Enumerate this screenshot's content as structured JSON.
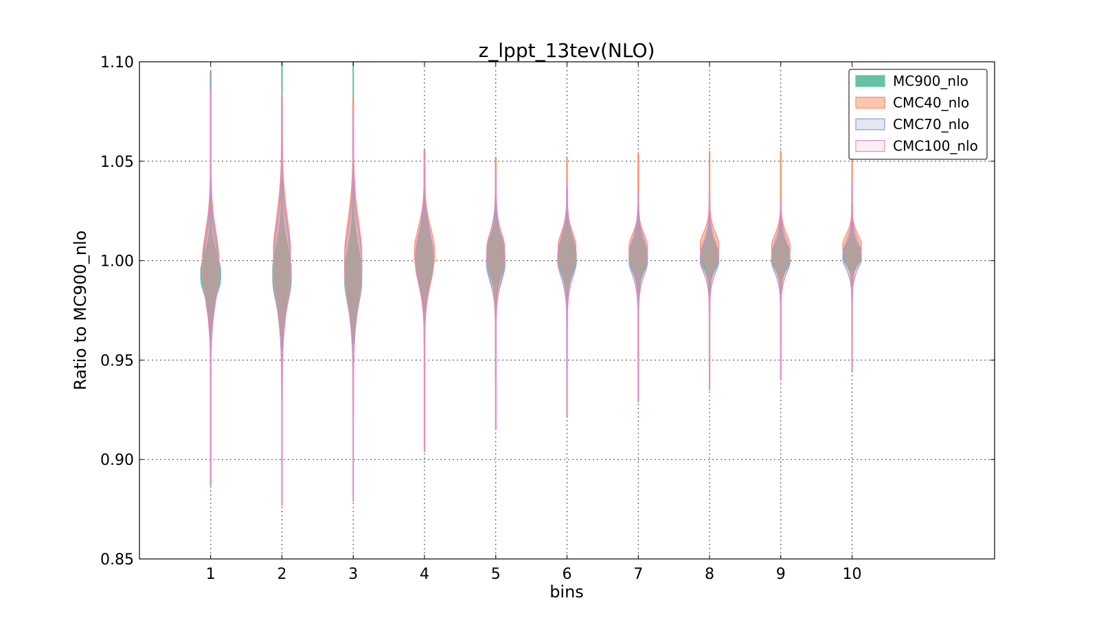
{
  "chart_data": {
    "type": "violin",
    "title": "z_lppt_13tev(NLO)",
    "xlabel": "bins",
    "ylabel": "Ratio to MC900_nlo",
    "xlim": [
      0,
      12
    ],
    "ylim": [
      0.85,
      1.1
    ],
    "x_ticks": [
      1,
      2,
      3,
      4,
      5,
      6,
      7,
      8,
      9,
      10
    ],
    "x_tick_labels": [
      "1",
      "2",
      "3",
      "4",
      "5",
      "6",
      "7",
      "8",
      "9",
      "10"
    ],
    "y_ticks": [
      0.85,
      0.9,
      0.95,
      1.0,
      1.05,
      1.1
    ],
    "y_tick_labels": [
      "0.85",
      "0.90",
      "0.95",
      "1.00",
      "1.05",
      "1.10"
    ],
    "grid": true,
    "legend_position": "top-right",
    "series": [
      {
        "name": "MC900_nlo",
        "color": "#66c2a5",
        "fill_alpha": 1.0,
        "violins": [
          {
            "bin": 1,
            "min": 0.887,
            "max": 1.095,
            "center": 0.993,
            "spread": 0.01,
            "maxwidth": 0.28
          },
          {
            "bin": 2,
            "min": 0.955,
            "max": 1.1,
            "center": 0.993,
            "spread": 0.014,
            "maxwidth": 0.26
          },
          {
            "bin": 3,
            "min": 0.958,
            "max": 1.1,
            "center": 0.992,
            "spread": 0.014,
            "maxwidth": 0.24
          },
          {
            "bin": 4,
            "min": 0.965,
            "max": 1.055,
            "center": 1.0,
            "spread": 0.011,
            "maxwidth": 0.24
          },
          {
            "bin": 5,
            "min": 0.972,
            "max": 1.052,
            "center": 1.002,
            "spread": 0.009,
            "maxwidth": 0.25
          },
          {
            "bin": 6,
            "min": 0.975,
            "max": 1.038,
            "center": 1.002,
            "spread": 0.008,
            "maxwidth": 0.25
          },
          {
            "bin": 7,
            "min": 0.978,
            "max": 1.032,
            "center": 1.002,
            "spread": 0.007,
            "maxwidth": 0.25
          },
          {
            "bin": 8,
            "min": 0.983,
            "max": 1.03,
            "center": 1.002,
            "spread": 0.006,
            "maxwidth": 0.25
          },
          {
            "bin": 9,
            "min": 0.984,
            "max": 1.025,
            "center": 1.002,
            "spread": 0.006,
            "maxwidth": 0.25
          },
          {
            "bin": 10,
            "min": 0.987,
            "max": 1.028,
            "center": 1.003,
            "spread": 0.005,
            "maxwidth": 0.25
          }
        ]
      },
      {
        "name": "CMC40_nlo",
        "color": "#fc8d62",
        "fill_alpha": 0.5,
        "violins": [
          {
            "bin": 1,
            "min": 0.96,
            "max": 1.085,
            "center": 0.998,
            "spread": 0.016,
            "maxwidth": 0.23
          },
          {
            "bin": 2,
            "min": 0.962,
            "max": 1.084,
            "center": 1.001,
            "spread": 0.02,
            "maxwidth": 0.24
          },
          {
            "bin": 3,
            "min": 0.962,
            "max": 1.082,
            "center": 1.0,
            "spread": 0.019,
            "maxwidth": 0.24
          },
          {
            "bin": 4,
            "min": 0.97,
            "max": 1.056,
            "center": 1.004,
            "spread": 0.012,
            "maxwidth": 0.28
          },
          {
            "bin": 5,
            "min": 0.975,
            "max": 1.051,
            "center": 1.005,
            "spread": 0.009,
            "maxwidth": 0.25
          },
          {
            "bin": 6,
            "min": 0.978,
            "max": 1.052,
            "center": 1.006,
            "spread": 0.008,
            "maxwidth": 0.25
          },
          {
            "bin": 7,
            "min": 0.982,
            "max": 1.054,
            "center": 1.006,
            "spread": 0.007,
            "maxwidth": 0.26
          },
          {
            "bin": 8,
            "min": 0.986,
            "max": 1.055,
            "center": 1.007,
            "spread": 0.007,
            "maxwidth": 0.26
          },
          {
            "bin": 9,
            "min": 0.988,
            "max": 1.055,
            "center": 1.006,
            "spread": 0.007,
            "maxwidth": 0.26
          },
          {
            "bin": 10,
            "min": 0.99,
            "max": 1.055,
            "center": 1.007,
            "spread": 0.006,
            "maxwidth": 0.26
          }
        ]
      },
      {
        "name": "CMC70_nlo",
        "color": "#8da0cb",
        "fill_alpha": 0.25,
        "violins": [
          {
            "bin": 1,
            "min": 0.95,
            "max": 1.095,
            "center": 0.995,
            "spread": 0.014,
            "maxwidth": 0.22
          },
          {
            "bin": 2,
            "min": 0.93,
            "max": 1.082,
            "center": 0.997,
            "spread": 0.018,
            "maxwidth": 0.24
          },
          {
            "bin": 3,
            "min": 0.932,
            "max": 1.076,
            "center": 0.997,
            "spread": 0.017,
            "maxwidth": 0.24
          },
          {
            "bin": 4,
            "min": 0.93,
            "max": 1.054,
            "center": 1.0,
            "spread": 0.012,
            "maxwidth": 0.25
          },
          {
            "bin": 5,
            "min": 0.94,
            "max": 1.04,
            "center": 1.0,
            "spread": 0.01,
            "maxwidth": 0.26
          },
          {
            "bin": 6,
            "min": 0.945,
            "max": 1.036,
            "center": 1.001,
            "spread": 0.009,
            "maxwidth": 0.26
          },
          {
            "bin": 7,
            "min": 0.95,
            "max": 1.03,
            "center": 1.001,
            "spread": 0.008,
            "maxwidth": 0.26
          },
          {
            "bin": 8,
            "min": 0.955,
            "max": 1.028,
            "center": 1.001,
            "spread": 0.007,
            "maxwidth": 0.26
          },
          {
            "bin": 9,
            "min": 0.958,
            "max": 1.026,
            "center": 1.001,
            "spread": 0.007,
            "maxwidth": 0.26
          },
          {
            "bin": 10,
            "min": 0.962,
            "max": 1.036,
            "center": 1.002,
            "spread": 0.006,
            "maxwidth": 0.26
          }
        ]
      },
      {
        "name": "CMC100_nlo",
        "color": "#e78ac3",
        "fill_alpha": 0.15,
        "violins": [
          {
            "bin": 1,
            "min": 0.888,
            "max": 1.085,
            "center": 0.996,
            "spread": 0.016,
            "maxwidth": 0.22
          },
          {
            "bin": 2,
            "min": 0.877,
            "max": 1.08,
            "center": 0.998,
            "spread": 0.019,
            "maxwidth": 0.24
          },
          {
            "bin": 3,
            "min": 0.879,
            "max": 1.076,
            "center": 0.997,
            "spread": 0.018,
            "maxwidth": 0.24
          },
          {
            "bin": 4,
            "min": 0.904,
            "max": 1.054,
            "center": 1.001,
            "spread": 0.013,
            "maxwidth": 0.25
          },
          {
            "bin": 5,
            "min": 0.915,
            "max": 1.045,
            "center": 1.002,
            "spread": 0.011,
            "maxwidth": 0.25
          },
          {
            "bin": 6,
            "min": 0.922,
            "max": 1.04,
            "center": 1.002,
            "spread": 0.01,
            "maxwidth": 0.25
          },
          {
            "bin": 7,
            "min": 0.929,
            "max": 1.035,
            "center": 1.002,
            "spread": 0.009,
            "maxwidth": 0.25
          },
          {
            "bin": 8,
            "min": 0.935,
            "max": 1.034,
            "center": 1.002,
            "spread": 0.008,
            "maxwidth": 0.25
          },
          {
            "bin": 9,
            "min": 0.94,
            "max": 1.03,
            "center": 1.002,
            "spread": 0.008,
            "maxwidth": 0.25
          },
          {
            "bin": 10,
            "min": 0.944,
            "max": 1.04,
            "center": 1.003,
            "spread": 0.007,
            "maxwidth": 0.25
          }
        ]
      }
    ]
  }
}
